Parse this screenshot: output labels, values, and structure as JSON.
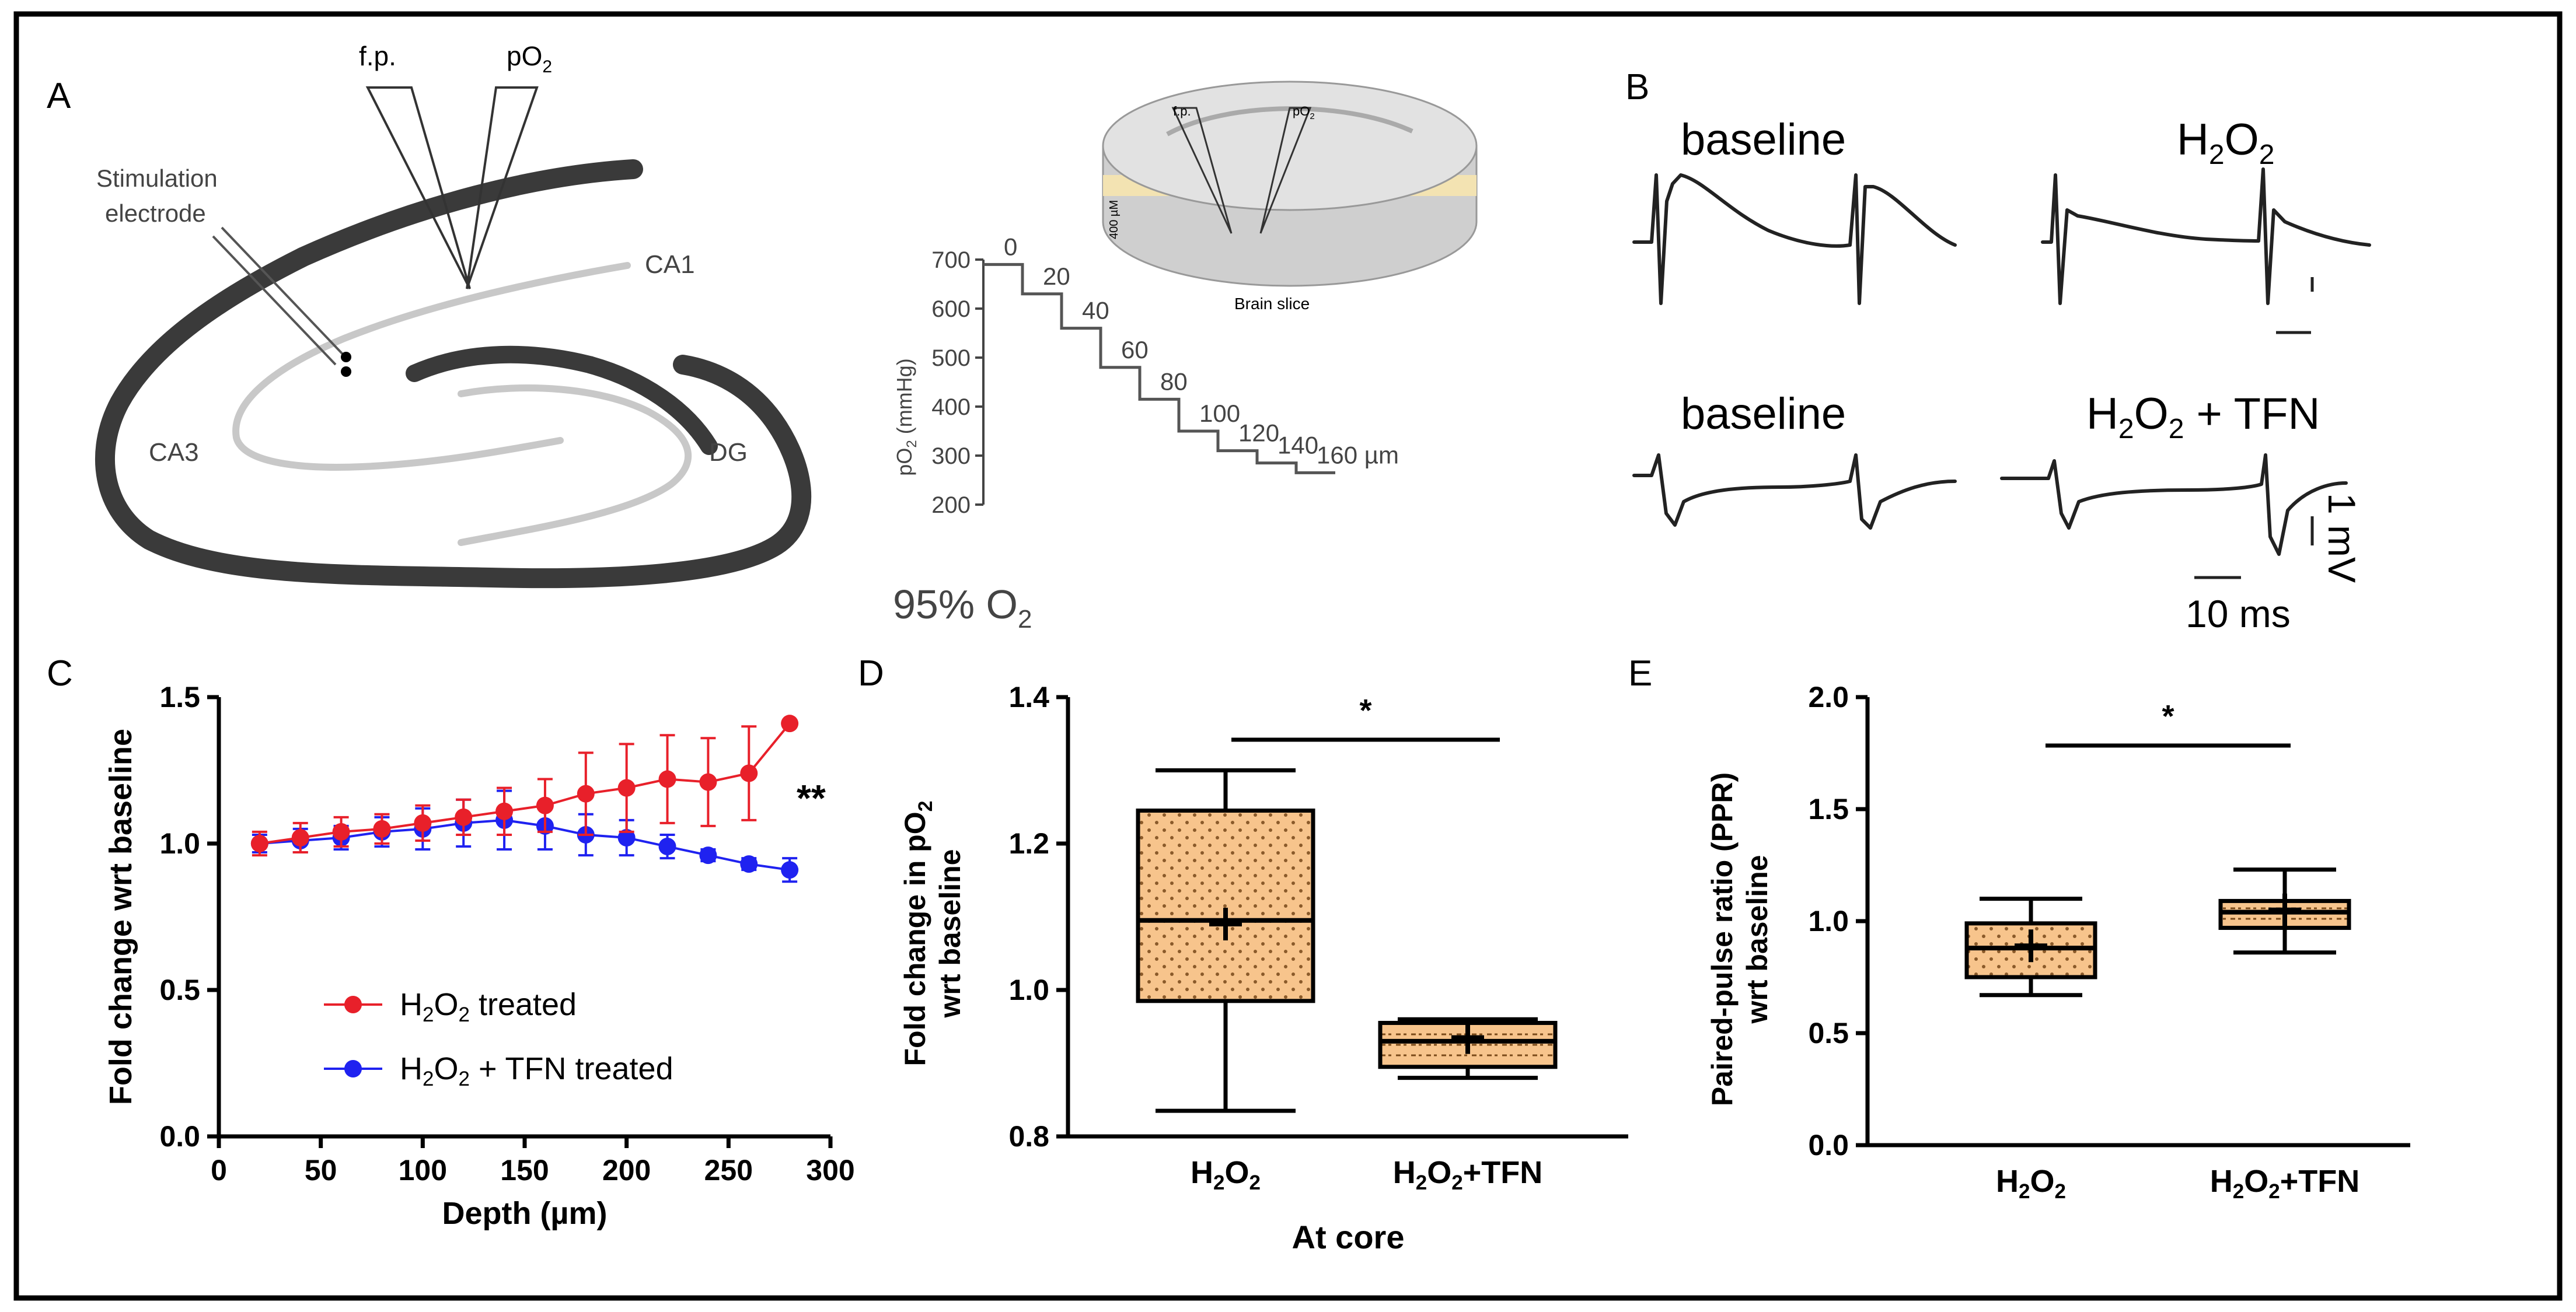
{
  "panels": {
    "A": {
      "letter": "A",
      "fp": "f.p.",
      "po2": "pO",
      "po2_sub": "2",
      "stim_line1": "Stimulation",
      "stim_line2": "electrode",
      "ca1": "CA1",
      "ca3": "CA3",
      "dg": "DG",
      "inset": {
        "fp": "f.p.",
        "po2": "pO",
        "po2_sub": "2",
        "thickness": "400 µM",
        "caption": "Brain slice"
      },
      "o2_label": "95% O",
      "o2_sub": "2"
    },
    "B": {
      "letter": "B",
      "baseline_top": "baseline",
      "h2o2_top_a": "H",
      "h2o2_top_s1": "2",
      "h2o2_top_b": "O",
      "h2o2_top_s2": "2",
      "baseline_bottom": "baseline",
      "h2o2_tfn_a": "H",
      "h2o2_tfn_s1": "2",
      "h2o2_tfn_b": "O",
      "h2o2_tfn_s2": "2",
      "h2o2_tfn_c": " + TFN",
      "scale_mv": "1 mV",
      "scale_ms": "10 ms"
    },
    "C": {
      "letter": "C"
    },
    "D": {
      "letter": "D",
      "ylabel_a": "Fold change in pO",
      "ylabel_sub": "2",
      "ylabel_b": "wrt baseline",
      "xlabel": "At core",
      "sig": "*"
    },
    "E": {
      "letter": "E",
      "ylabel_a": "Paired-pulse ratio (PPR)",
      "ylabel_b": "wrt baseline",
      "sig": "*"
    }
  },
  "colors": {
    "red": "#e8202a",
    "blue": "#1f22f0",
    "box_fill": "#f7c48c"
  },
  "chart_data": [
    {
      "id": "A-inset",
      "type": "line",
      "title": "",
      "ylabel": "pO2 (mmHg)",
      "ylabel_parts": [
        "pO",
        "2",
        " (mmHg)"
      ],
      "ylim": [
        200,
        700
      ],
      "yticks": [
        200,
        300,
        400,
        500,
        600,
        700
      ],
      "depth_labels": [
        "0",
        "20",
        "40",
        "60",
        "80",
        "100",
        "120",
        "140",
        "160 µm"
      ],
      "depths": [
        0,
        20,
        40,
        60,
        80,
        100,
        120,
        140,
        160
      ],
      "values": [
        690,
        630,
        560,
        480,
        415,
        350,
        310,
        285,
        265
      ]
    },
    {
      "id": "C",
      "type": "line",
      "xlabel": "Depth (µm)",
      "ylabel": "Fold change wrt baseline",
      "xlim": [
        0,
        300
      ],
      "ylim": [
        0,
        1.5
      ],
      "xticks": [
        0,
        50,
        100,
        150,
        200,
        250,
        300
      ],
      "yticks": [
        0.0,
        0.5,
        1.0,
        1.5
      ],
      "ytick_labels": [
        "0.0",
        "0.5",
        "1.0",
        "1.5"
      ],
      "annotation": "**",
      "x": [
        20,
        40,
        60,
        80,
        100,
        120,
        140,
        160,
        180,
        200,
        220,
        240,
        260,
        280
      ],
      "series": [
        {
          "name": "H2O2 treated",
          "legend_parts": [
            "H",
            "2",
            "O",
            "2",
            " treated"
          ],
          "color": "#e8202a",
          "values": [
            1.0,
            1.02,
            1.04,
            1.05,
            1.07,
            1.09,
            1.11,
            1.13,
            1.17,
            1.19,
            1.22,
            1.21,
            1.24,
            1.41
          ],
          "errors": [
            0.04,
            0.05,
            0.05,
            0.05,
            0.06,
            0.06,
            0.08,
            0.09,
            0.14,
            0.15,
            0.15,
            0.15,
            0.16,
            0.0
          ]
        },
        {
          "name": "H2O2 + TFN treated",
          "legend_parts": [
            "H",
            "2",
            "O",
            "2",
            " + TFN treated"
          ],
          "color": "#1f22f0",
          "values": [
            1.0,
            1.01,
            1.02,
            1.04,
            1.05,
            1.07,
            1.08,
            1.06,
            1.03,
            1.02,
            0.99,
            0.96,
            0.93,
            0.91
          ],
          "errors": [
            0.03,
            0.04,
            0.04,
            0.05,
            0.07,
            0.08,
            0.1,
            0.08,
            0.07,
            0.06,
            0.04,
            0.02,
            0.02,
            0.04
          ]
        }
      ]
    },
    {
      "id": "D",
      "type": "box",
      "ylim": [
        0.8,
        1.4
      ],
      "yticks": [
        0.8,
        1.0,
        1.2,
        1.4
      ],
      "ytick_labels": [
        "0.8",
        "1.0",
        "1.2",
        "1.4"
      ],
      "categories": [
        "H2O2",
        "H2O2+TFN"
      ],
      "category_parts": [
        [
          "H",
          "2",
          "O",
          "2",
          ""
        ],
        [
          "H",
          "2",
          "O",
          "2",
          "+TFN"
        ]
      ],
      "boxes": [
        {
          "min": 0.835,
          "q1": 0.985,
          "median": 1.095,
          "q3": 1.245,
          "max": 1.3,
          "mean": 1.09
        },
        {
          "min": 0.88,
          "q1": 0.895,
          "median": 0.93,
          "q3": 0.955,
          "max": 0.96,
          "mean": 0.935
        }
      ]
    },
    {
      "id": "E",
      "type": "box",
      "ylim": [
        0.0,
        2.0
      ],
      "yticks": [
        0.0,
        0.5,
        1.0,
        1.5,
        2.0
      ],
      "ytick_labels": [
        "0.0",
        "0.5",
        "1.0",
        "1.5",
        "2.0"
      ],
      "categories": [
        "H2O2",
        "H2O2+TFN"
      ],
      "category_parts": [
        [
          "H",
          "2",
          "O",
          "2",
          ""
        ],
        [
          "H",
          "2",
          "O",
          "2",
          "+TFN"
        ]
      ],
      "boxes": [
        {
          "min": 0.67,
          "q1": 0.75,
          "median": 0.88,
          "q3": 0.99,
          "max": 1.1,
          "mean": 0.89
        },
        {
          "min": 0.86,
          "q1": 0.97,
          "median": 1.04,
          "q3": 1.09,
          "max": 1.23,
          "mean": 1.05
        }
      ]
    }
  ]
}
